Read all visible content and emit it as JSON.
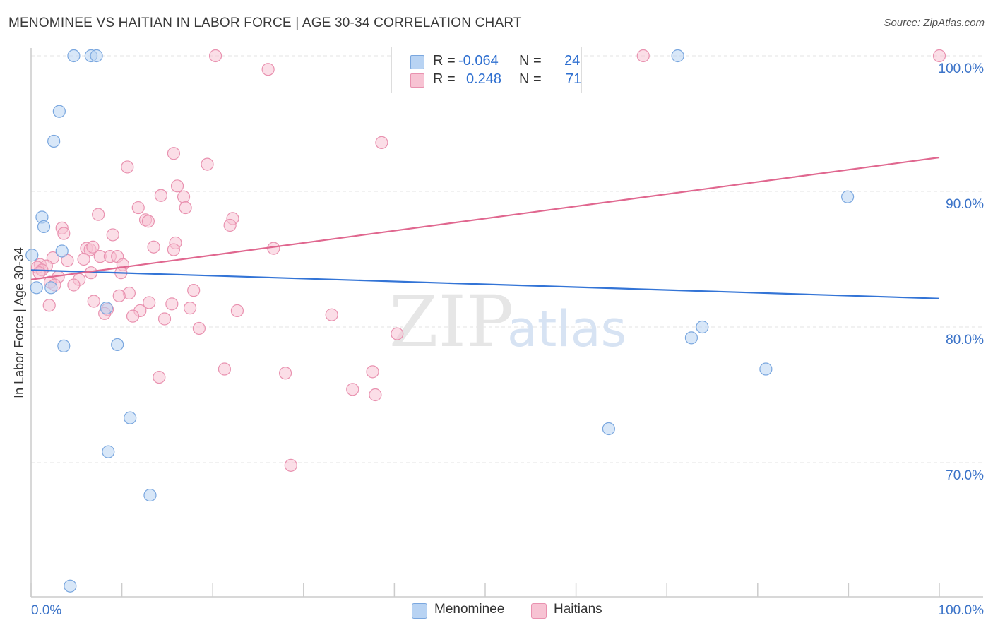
{
  "title": "MENOMINEE VS HAITIAN IN LABOR FORCE | AGE 30-34 CORRELATION CHART",
  "source": "Source: ZipAtlas.com",
  "watermark": {
    "zip": "ZIP",
    "atlas": "atlas"
  },
  "colors": {
    "blue_fill": "#b8d3f3",
    "blue_stroke": "#7aa7df",
    "blue_line": "#3374d6",
    "pink_fill": "#f7c3d3",
    "pink_stroke": "#e992b0",
    "pink_line": "#e0678f",
    "axis_text": "#3b73c8",
    "grid": "#e3e3e3"
  },
  "stats": [
    {
      "r_label": "R =",
      "r_value": "-0.064",
      "n_label": "N =",
      "n_value": "24",
      "color": "blue"
    },
    {
      "r_label": "R =",
      "r_value": "0.248",
      "n_label": "N =",
      "n_value": "71",
      "color": "pink"
    }
  ],
  "legend": [
    {
      "label": "Menominee",
      "color": "blue"
    },
    {
      "label": "Haitians",
      "color": "pink"
    }
  ],
  "chart_data": {
    "type": "scatter",
    "title": "MENOMINEE VS HAITIAN IN LABOR FORCE | AGE 30-34 CORRELATION CHART",
    "xlabel": "",
    "ylabel": "In Labor Force | Age 30-34",
    "xlim": [
      0,
      100
    ],
    "ylim": [
      59,
      101.5
    ],
    "x_tick_labels": [
      {
        "value": 0,
        "label": "0.0%"
      },
      {
        "value": 100,
        "label": "100.0%"
      }
    ],
    "y_tick_labels": [
      {
        "value": 70,
        "label": "70.0%"
      },
      {
        "value": 80,
        "label": "80.0%"
      },
      {
        "value": 90,
        "label": "90.0%"
      },
      {
        "value": 100,
        "label": "100.0%"
      }
    ],
    "grid": true,
    "series": [
      {
        "name": "Menominee",
        "color": "blue",
        "trend": {
          "x": [
            0,
            100
          ],
          "y": [
            84.2,
            82.1
          ]
        },
        "points": [
          [
            4.7,
            100.0
          ],
          [
            6.6,
            100.0
          ],
          [
            7.2,
            100.0
          ],
          [
            71.2,
            100.0
          ],
          [
            3.1,
            95.9
          ],
          [
            2.5,
            93.7
          ],
          [
            89.9,
            89.6
          ],
          [
            1.2,
            88.1
          ],
          [
            1.4,
            87.4
          ],
          [
            3.4,
            85.6
          ],
          [
            0.1,
            85.3
          ],
          [
            0.6,
            82.9
          ],
          [
            2.2,
            82.9
          ],
          [
            8.3,
            81.4
          ],
          [
            73.9,
            80.0
          ],
          [
            72.7,
            79.2
          ],
          [
            3.6,
            78.6
          ],
          [
            9.5,
            78.7
          ],
          [
            80.9,
            76.9
          ],
          [
            10.9,
            73.3
          ],
          [
            63.6,
            72.5
          ],
          [
            8.5,
            70.8
          ],
          [
            13.1,
            67.6
          ],
          [
            4.3,
            60.9
          ]
        ]
      },
      {
        "name": "Haitians",
        "color": "pink",
        "trend": {
          "x": [
            0,
            100
          ],
          "y": [
            83.5,
            92.5
          ]
        },
        "points": [
          [
            20.3,
            100.0
          ],
          [
            67.4,
            100.0
          ],
          [
            100.0,
            100.0
          ],
          [
            26.1,
            99.0
          ],
          [
            38.6,
            93.6
          ],
          [
            15.7,
            92.8
          ],
          [
            19.4,
            92.0
          ],
          [
            10.6,
            91.8
          ],
          [
            16.1,
            90.4
          ],
          [
            14.3,
            89.7
          ],
          [
            16.8,
            89.6
          ],
          [
            11.8,
            88.8
          ],
          [
            17.0,
            88.8
          ],
          [
            7.4,
            88.3
          ],
          [
            12.6,
            87.9
          ],
          [
            12.9,
            87.8
          ],
          [
            22.2,
            88.0
          ],
          [
            21.9,
            87.5
          ],
          [
            3.4,
            87.3
          ],
          [
            3.6,
            86.9
          ],
          [
            9.0,
            86.8
          ],
          [
            15.9,
            86.2
          ],
          [
            6.1,
            85.8
          ],
          [
            6.5,
            85.7
          ],
          [
            6.8,
            85.9
          ],
          [
            13.5,
            85.9
          ],
          [
            15.7,
            85.7
          ],
          [
            26.7,
            85.8
          ],
          [
            2.4,
            85.1
          ],
          [
            5.8,
            85.0
          ],
          [
            7.6,
            85.2
          ],
          [
            8.7,
            85.2
          ],
          [
            9.5,
            85.2
          ],
          [
            4.0,
            84.9
          ],
          [
            1.0,
            84.6
          ],
          [
            1.7,
            84.5
          ],
          [
            0.7,
            84.4
          ],
          [
            1.2,
            84.2
          ],
          [
            10.1,
            84.6
          ],
          [
            0.9,
            84.0
          ],
          [
            6.6,
            84.0
          ],
          [
            9.9,
            84.0
          ],
          [
            3.0,
            83.7
          ],
          [
            5.3,
            83.5
          ],
          [
            2.1,
            83.3
          ],
          [
            2.6,
            83.1
          ],
          [
            4.7,
            83.1
          ],
          [
            17.9,
            82.7
          ],
          [
            10.8,
            82.5
          ],
          [
            9.7,
            82.3
          ],
          [
            6.9,
            81.9
          ],
          [
            13.0,
            81.8
          ],
          [
            15.5,
            81.7
          ],
          [
            17.5,
            81.4
          ],
          [
            2.0,
            81.6
          ],
          [
            8.4,
            81.3
          ],
          [
            12.0,
            81.2
          ],
          [
            22.7,
            81.2
          ],
          [
            8.1,
            81.0
          ],
          [
            11.2,
            80.8
          ],
          [
            14.7,
            80.6
          ],
          [
            33.1,
            80.9
          ],
          [
            18.5,
            79.9
          ],
          [
            40.3,
            79.5
          ],
          [
            21.3,
            76.9
          ],
          [
            28.0,
            76.6
          ],
          [
            37.6,
            76.7
          ],
          [
            14.1,
            76.3
          ],
          [
            35.4,
            75.4
          ],
          [
            37.9,
            75.0
          ],
          [
            28.6,
            69.8
          ]
        ]
      }
    ]
  }
}
